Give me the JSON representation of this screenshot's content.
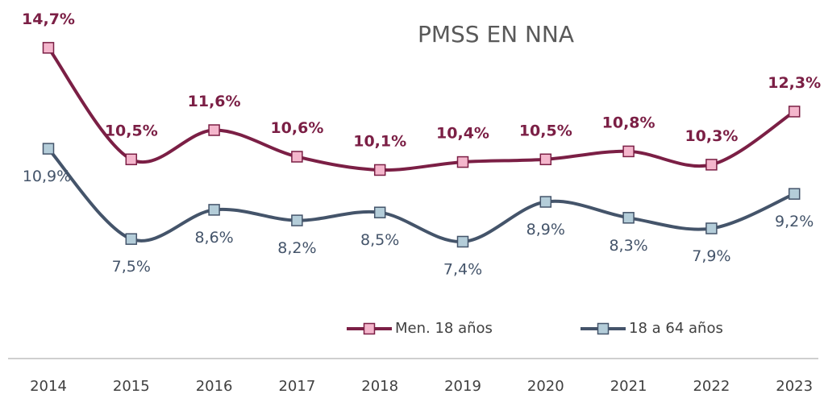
{
  "chart_data": {
    "type": "line",
    "title": "PMSS EN NNA",
    "categories": [
      "2014",
      "2015",
      "2016",
      "2017",
      "2018",
      "2019",
      "2020",
      "2021",
      "2022",
      "2023"
    ],
    "ylim": [
      3,
      16.5
    ],
    "legend": "bottom",
    "series": [
      {
        "name": "Men. 18 años",
        "color": "#7b1f45",
        "marker_fill": "#f4b6cc",
        "values": [
          14.7,
          10.5,
          11.6,
          10.6,
          10.1,
          10.4,
          10.5,
          10.8,
          10.3,
          12.3
        ],
        "value_labels": [
          "14,7%",
          "10,5%",
          "11,6%",
          "10,6%",
          "10,1%",
          "10,4%",
          "10,5%",
          "10,8%",
          "10,3%",
          "12,3%"
        ]
      },
      {
        "name": "18 a 64 años",
        "color": "#44546a",
        "marker_fill": "#b4cdd9",
        "values": [
          10.9,
          7.5,
          8.6,
          8.2,
          8.5,
          7.4,
          8.9,
          8.3,
          7.9,
          9.2
        ],
        "value_labels": [
          "10,9%",
          "7,5%",
          "8,6%",
          "8,2%",
          "8,5%",
          "7,4%",
          "8,9%",
          "8,3%",
          "7,9%",
          "9,2%"
        ]
      }
    ]
  }
}
